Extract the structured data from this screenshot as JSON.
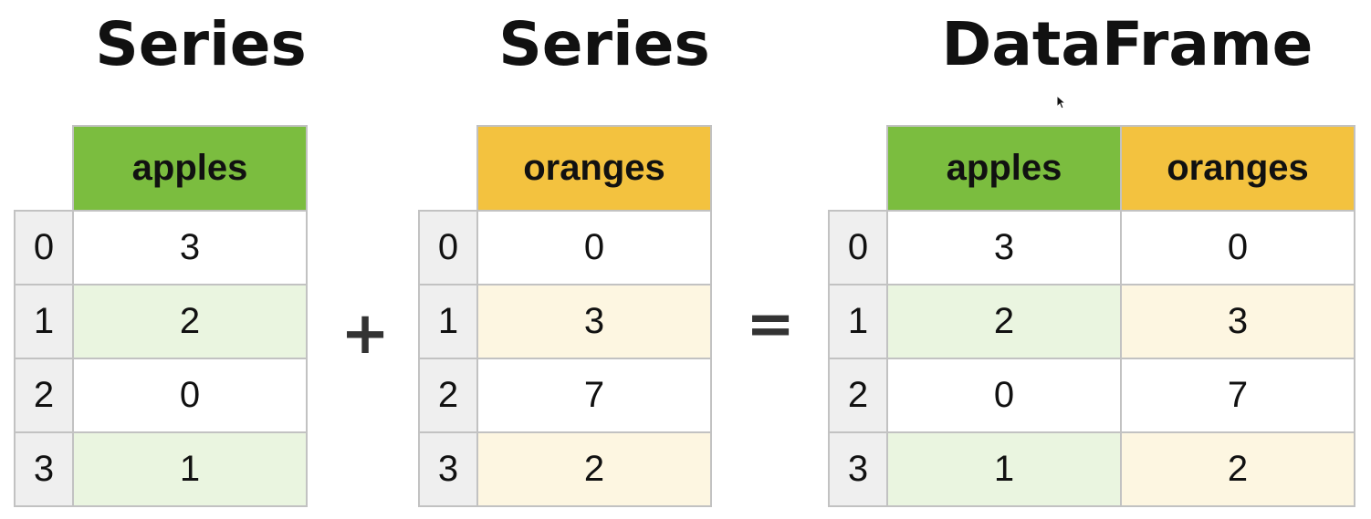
{
  "titles": {
    "left": "Series",
    "middle": "Series",
    "right": "DataFrame"
  },
  "operators": {
    "plus": "+",
    "equals": "="
  },
  "index": [
    "0",
    "1",
    "2",
    "3"
  ],
  "left_table": {
    "header": "apples",
    "values": [
      "3",
      "2",
      "0",
      "1"
    ]
  },
  "middle_table": {
    "header": "oranges",
    "values": [
      "0",
      "3",
      "7",
      "2"
    ]
  },
  "right_table": {
    "headers": [
      "apples",
      "oranges"
    ],
    "rows": [
      [
        "3",
        "0"
      ],
      [
        "2",
        "3"
      ],
      [
        "0",
        "7"
      ],
      [
        "1",
        "2"
      ]
    ]
  },
  "colors": {
    "apples_header": "#7bbd3f",
    "oranges_header": "#f3c23f",
    "apples_stripe": "#eaf5e0",
    "oranges_stripe": "#fdf6e1",
    "index_bg": "#efefef"
  },
  "cursor_icon": "mouse-pointer-icon"
}
